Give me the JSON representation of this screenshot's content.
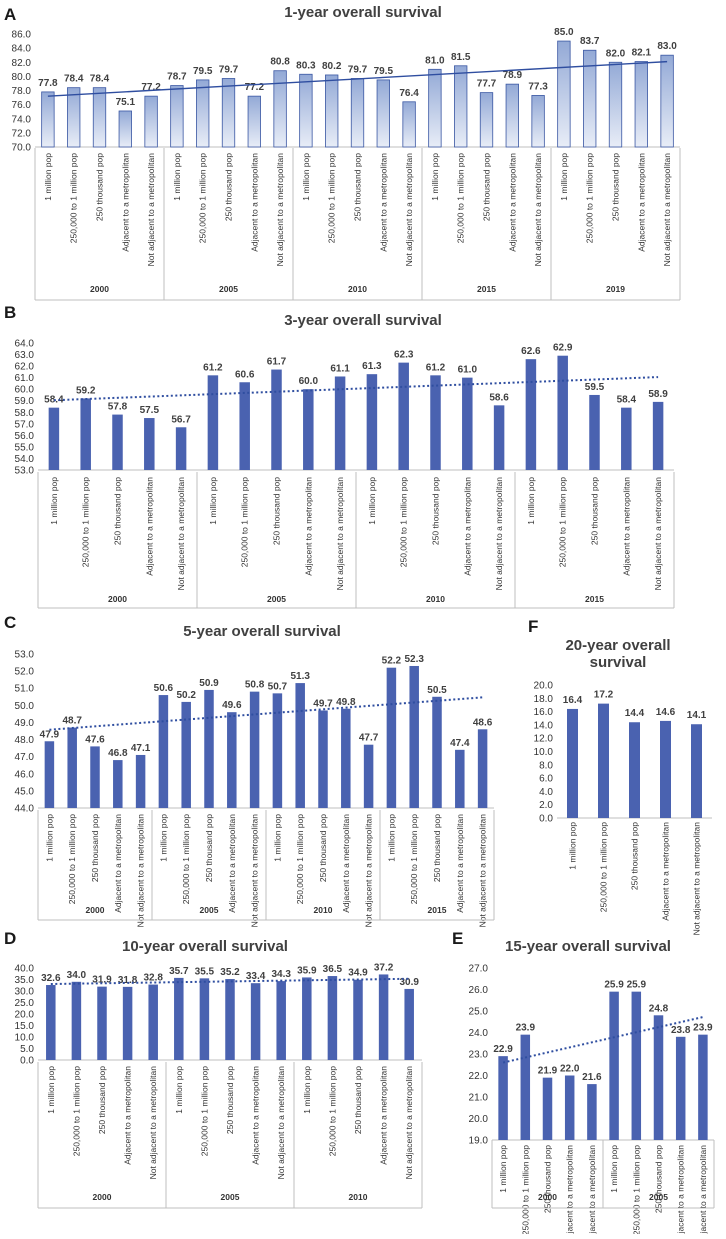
{
  "colors": {
    "bar_gradient_top": "#93a9d6",
    "bar_gradient_bottom": "#e8edf7",
    "bar_solid": "#4a62b0",
    "bar_stroke": "#3a57a3",
    "trend": "#2f4ea0",
    "axis": "#bfbfbf",
    "text": "#404040"
  },
  "chart_data": [
    {
      "id": "A",
      "panel": "A",
      "type": "bar",
      "style": "gradient",
      "trendline": "solid",
      "title": "1-year overall survival",
      "ylim": [
        70,
        86
      ],
      "yticks": [
        "70.0",
        "72.0",
        "74.0",
        "76.0",
        "78.0",
        "80.0",
        "82.0",
        "84.0",
        "86.0"
      ],
      "groups": [
        {
          "label": "2000",
          "categories": [
            "1 million pop",
            "250,000 to 1 million pop",
            "250 thousand pop",
            "Adjacent to a metropolitan",
            "Not adjacent to a metropolitan"
          ],
          "values": [
            "77.8",
            "78.4",
            "78.4",
            "75.1",
            "77.2"
          ]
        },
        {
          "label": "2005",
          "categories": [
            "1 million pop",
            "250,000 to 1 million pop",
            "250 thousand pop",
            "Adjacent to a metropolitan",
            "Not adjacent to a metropolitan"
          ],
          "values": [
            "78.7",
            "79.5",
            "79.7",
            "77.2",
            "80.8"
          ]
        },
        {
          "label": "2010",
          "categories": [
            "1 million pop",
            "250,000 to 1 million pop",
            "250 thousand pop",
            "Adjacent to a metropolitan",
            "Not adjacent to a metropolitan"
          ],
          "values": [
            "80.3",
            "80.2",
            "79.7",
            "79.5",
            "76.4"
          ]
        },
        {
          "label": "2015",
          "categories": [
            "1 million pop",
            "250,000 to 1 million pop",
            "250 thousand pop",
            "Adjacent to a metropolitan",
            "Not adjacent to a metropolitan"
          ],
          "values": [
            "81.0",
            "81.5",
            "77.7",
            "78.9",
            "77.3"
          ]
        },
        {
          "label": "2019",
          "categories": [
            "1 million pop",
            "250,000 to 1 million pop",
            "250 thousand pop",
            "Adjacent to a metropolitan",
            "Not adjacent to a metropolitan"
          ],
          "values": [
            "85.0",
            "83.7",
            "82.0",
            "82.1",
            "83.0"
          ]
        }
      ]
    },
    {
      "id": "B",
      "panel": "B",
      "type": "bar",
      "style": "solid",
      "trendline": "dotted",
      "title": "3-year overall survival",
      "ylim": [
        53,
        64
      ],
      "yticks": [
        "53.0",
        "54.0",
        "55.0",
        "56.0",
        "57.0",
        "58.0",
        "59.0",
        "60.0",
        "61.0",
        "62.0",
        "63.0",
        "64.0"
      ],
      "groups": [
        {
          "label": "2000",
          "categories": [
            "1 million pop",
            "250,000 to 1 million pop",
            "250 thousand pop",
            "Adjacent to a metropolitan",
            "Not adjacent to a metropolitan"
          ],
          "values": [
            "58.4",
            "59.2",
            "57.8",
            "57.5",
            "56.7"
          ]
        },
        {
          "label": "2005",
          "categories": [
            "1 million pop",
            "250,000 to 1 million pop",
            "250 thousand pop",
            "Adjacent to a metropolitan",
            "Not adjacent to a metropolitan"
          ],
          "values": [
            "61.2",
            "60.6",
            "61.7",
            "60.0",
            "61.1"
          ]
        },
        {
          "label": "2010",
          "categories": [
            "1 million pop",
            "250,000 to 1 million pop",
            "250 thousand pop",
            "Adjacent to a metropolitan",
            "Not adjacent to a metropolitan"
          ],
          "values": [
            "61.3",
            "62.3",
            "61.2",
            "61.0",
            "58.6"
          ]
        },
        {
          "label": "2015",
          "categories": [
            "1 million pop",
            "250,000 to 1 million pop",
            "250 thousand pop",
            "Adjacent to a metropolitan",
            "Not adjacent to a metropolitan"
          ],
          "values": [
            "62.6",
            "62.9",
            "59.5",
            "58.4",
            "58.9"
          ]
        }
      ]
    },
    {
      "id": "C",
      "panel": "C",
      "type": "bar",
      "style": "solid",
      "trendline": "dotted",
      "title": "5-year overall survival",
      "ylim": [
        44,
        53
      ],
      "yticks": [
        "44.0",
        "45.0",
        "46.0",
        "47.0",
        "48.0",
        "49.0",
        "50.0",
        "51.0",
        "52.0",
        "53.0"
      ],
      "groups": [
        {
          "label": "2000",
          "categories": [
            "1 million pop",
            "250,000 to 1 million pop",
            "250 thousand pop",
            "Adjacent to a metropolitan",
            "Not adjacent to a metropolitan"
          ],
          "values": [
            "47.9",
            "48.7",
            "47.6",
            "46.8",
            "47.1"
          ]
        },
        {
          "label": "2005",
          "categories": [
            "1 million pop",
            "250,000 to 1 million pop",
            "250 thousand pop",
            "Adjacent to a metropolitan",
            "Not adjacent to a metropolitan"
          ],
          "values": [
            "50.6",
            "50.2",
            "50.9",
            "49.6",
            "50.8"
          ]
        },
        {
          "label": "2010",
          "categories": [
            "1 million pop",
            "250,000 to 1 million pop",
            "250 thousand pop",
            "Adjacent to a metropolitan",
            "Not adjacent to a metropolitan"
          ],
          "values": [
            "50.7",
            "51.3",
            "49.7",
            "49.8",
            "47.7"
          ]
        },
        {
          "label": "2015",
          "categories": [
            "1 million pop",
            "250,000 to 1 million pop",
            "250 thousand pop",
            "Adjacent to a metropolitan",
            "Not adjacent to a metropolitan"
          ],
          "values": [
            "52.2",
            "52.3",
            "50.5",
            "47.4",
            "48.6"
          ]
        }
      ]
    },
    {
      "id": "F",
      "panel": "F",
      "type": "bar",
      "style": "solid",
      "trendline": "none",
      "title": "20-year overall survival",
      "title_lines": [
        "20-year overall",
        "survival"
      ],
      "ylim": [
        0,
        20
      ],
      "yticks": [
        "0.0",
        "2.0",
        "4.0",
        "6.0",
        "8.0",
        "10.0",
        "12.0",
        "14.0",
        "16.0",
        "18.0",
        "20.0"
      ],
      "groups": [
        {
          "label": "",
          "categories": [
            "1 million pop",
            "250,000 to 1 million pop",
            "250 thousand pop",
            "Adjacent to a metropolitan",
            "Not adjacent to a metropolitan"
          ],
          "values": [
            "16.4",
            "17.2",
            "14.4",
            "14.6",
            "14.1"
          ]
        }
      ]
    },
    {
      "id": "D",
      "panel": "D",
      "type": "bar",
      "style": "solid",
      "trendline": "dotted",
      "title": "10-year overall survival",
      "ylim": [
        0,
        40
      ],
      "yticks": [
        "0.0",
        "5.0",
        "10.0",
        "15.0",
        "20.0",
        "25.0",
        "30.0",
        "35.0",
        "40.0"
      ],
      "groups": [
        {
          "label": "2000",
          "categories": [
            "1 million pop",
            "250,000 to 1 million pop",
            "250 thousand pop",
            "Adjacent to a metropolitan",
            "Not adjacent to a metropolitan"
          ],
          "values": [
            "32.6",
            "34.0",
            "31.9",
            "31.8",
            "32.8"
          ]
        },
        {
          "label": "2005",
          "categories": [
            "1 million pop",
            "250,000 to 1 million pop",
            "250 thousand pop",
            "Adjacent to a metropolitan",
            "Not adjacent to a metropolitan"
          ],
          "values": [
            "35.7",
            "35.5",
            "35.2",
            "33.4",
            "34.3"
          ]
        },
        {
          "label": "2010",
          "categories": [
            "1 million pop",
            "250,000 to 1 million pop",
            "250 thousand pop",
            "Adjacent to a metropolitan",
            "Not adjacent to a metropolitan"
          ],
          "values": [
            "35.9",
            "36.5",
            "34.9",
            "37.2",
            "30.9"
          ]
        }
      ]
    },
    {
      "id": "E",
      "panel": "E",
      "type": "bar",
      "style": "solid",
      "trendline": "dotted",
      "title": "15-year overall survival",
      "ylim": [
        19,
        27
      ],
      "yticks": [
        "19.0",
        "20.0",
        "21.0",
        "22.0",
        "23.0",
        "24.0",
        "25.0",
        "26.0",
        "27.0"
      ],
      "groups": [
        {
          "label": "2000",
          "categories": [
            "1 million pop",
            "250,000 to 1 million pop",
            "250 thousand pop",
            "Adjacent to a metropolitan",
            "Not adjacent to a metropolitan"
          ],
          "values": [
            "22.9",
            "23.9",
            "21.9",
            "22.0",
            "21.6"
          ]
        },
        {
          "label": "2005",
          "categories": [
            "1 million pop",
            "250,000 to 1 million pop",
            "250 thousand pop",
            "Adjacent to a metropolitan",
            "Not adjacent to a metropolitan"
          ],
          "values": [
            "25.9",
            "25.9",
            "24.8",
            "23.8",
            "23.9"
          ]
        }
      ]
    }
  ]
}
